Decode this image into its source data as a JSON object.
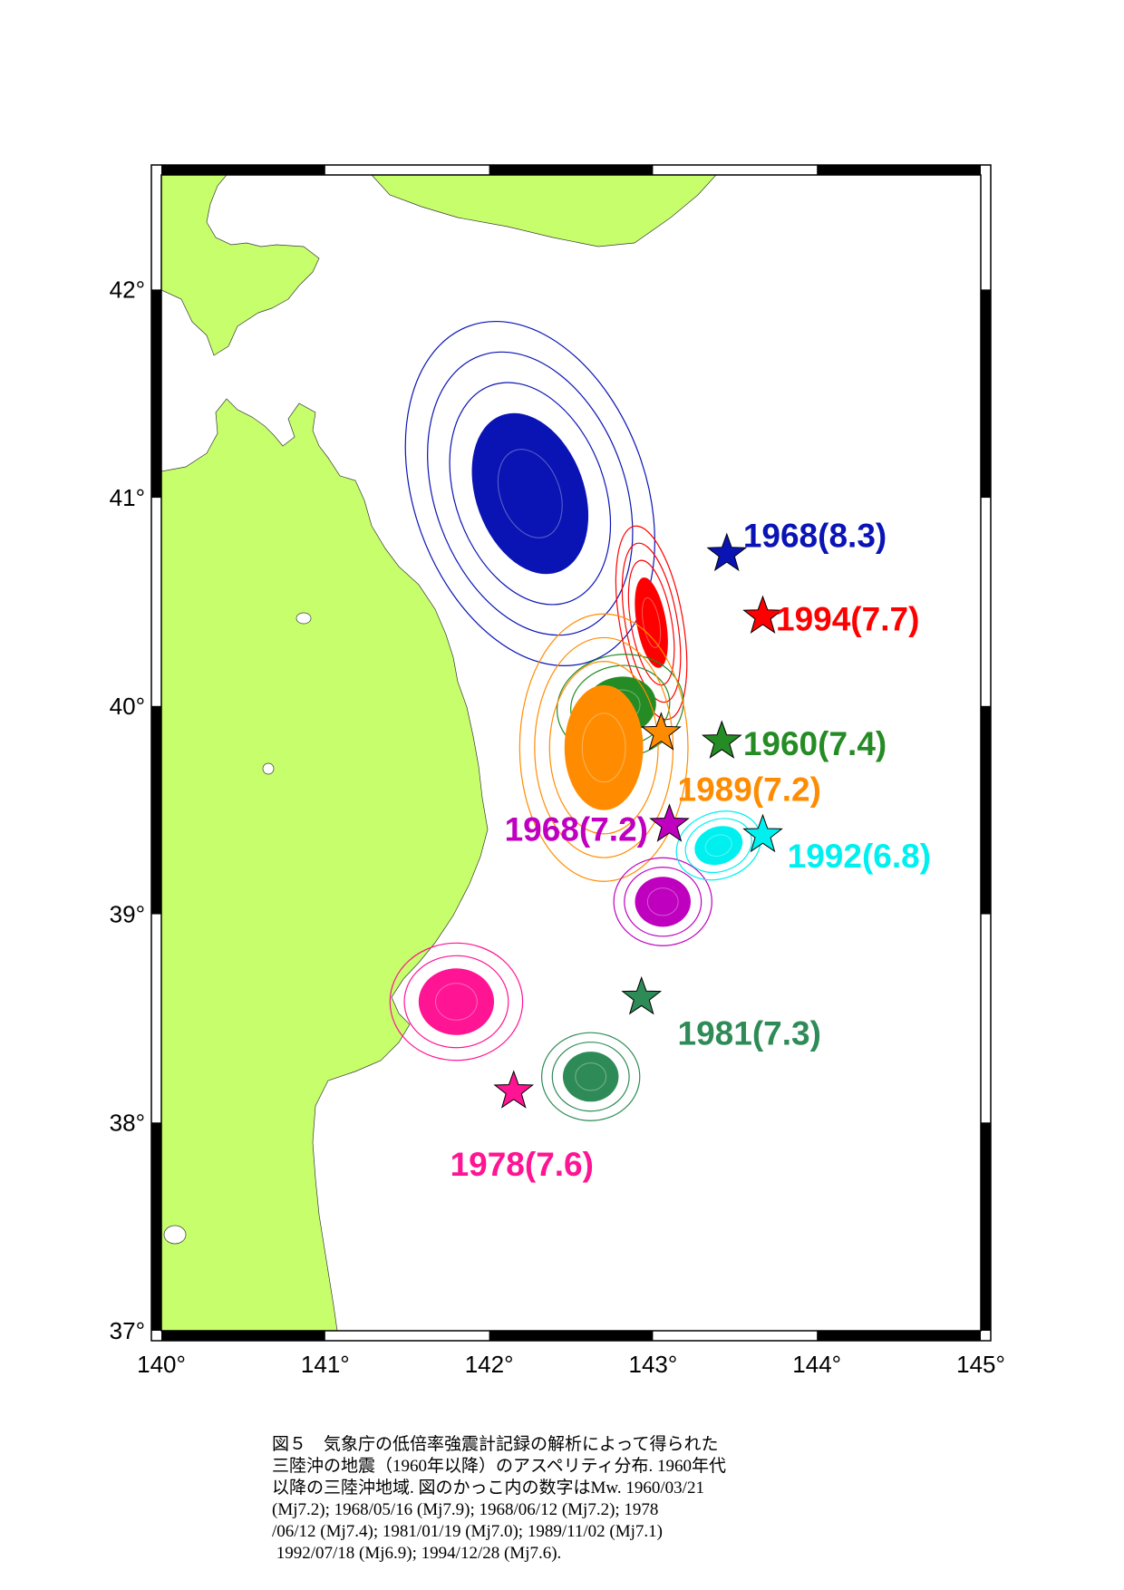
{
  "colors": {
    "land": "#c6fe6c",
    "ocean": "#ffffff",
    "frame": "#000000"
  },
  "map": {
    "lon_range": [
      140,
      145
    ],
    "lat_range": [
      37,
      42.55
    ],
    "x_ticks": [
      {
        "value": 140,
        "label": "140°"
      },
      {
        "value": 141,
        "label": "141°"
      },
      {
        "value": 142,
        "label": "142°"
      },
      {
        "value": 143,
        "label": "143°"
      },
      {
        "value": 144,
        "label": "144°"
      },
      {
        "value": 145,
        "label": "145°"
      }
    ],
    "y_ticks": [
      {
        "value": 37,
        "label": "37°"
      },
      {
        "value": 38,
        "label": "38°"
      },
      {
        "value": 39,
        "label": "39°"
      },
      {
        "value": 40,
        "label": "40°"
      },
      {
        "value": 41,
        "label": "41°"
      },
      {
        "value": 42,
        "label": "42°"
      }
    ]
  },
  "earthquakes": [
    {
      "label": "1968(8.3)",
      "color": "#0a14b4",
      "epicenter": [
        143.45,
        40.73
      ],
      "label_pos": [
        143.55,
        40.82
      ],
      "label_anchor": "start",
      "asperity": {
        "center": [
          142.25,
          41.02
        ],
        "rx": 0.33,
        "ry": 0.4,
        "rot": -20,
        "contours": 3
      }
    },
    {
      "label": "1994(7.7)",
      "color": "#ff0000",
      "epicenter": [
        143.67,
        40.43
      ],
      "label_pos": [
        143.75,
        40.42
      ],
      "label_anchor": "start",
      "asperity": {
        "center": [
          142.99,
          40.4
        ],
        "rx": 0.09,
        "ry": 0.22,
        "rot": -10,
        "contours": 3
      }
    },
    {
      "label": "1960(7.4)",
      "color": "#258c25",
      "epicenter": [
        143.42,
        39.83
      ],
      "label_pos": [
        143.55,
        39.82
      ],
      "label_anchor": "start",
      "asperity": {
        "center": [
          142.8,
          40.0
        ],
        "rx": 0.22,
        "ry": 0.14,
        "rot": -10,
        "contours": 2
      }
    },
    {
      "label": "1989(7.2)",
      "color": "#ff8c00",
      "epicenter": [
        143.05,
        39.87
      ],
      "label_pos": [
        143.15,
        39.6
      ],
      "label_anchor": "start",
      "asperity": {
        "center": [
          142.7,
          39.8
        ],
        "rx": 0.24,
        "ry": 0.3,
        "rot": 0,
        "contours": 3
      }
    },
    {
      "label": "1968(7.2)",
      "color": "#bf00bf",
      "epicenter": [
        143.1,
        39.43
      ],
      "label_pos": [
        142.97,
        39.41
      ],
      "label_anchor": "end",
      "asperity": {
        "center": [
          143.06,
          39.06
        ],
        "rx": 0.17,
        "ry": 0.12,
        "rot": 0,
        "contours": 2
      }
    },
    {
      "label": "1992(6.8)",
      "color": "#00f0f0",
      "epicenter": [
        143.67,
        39.38
      ],
      "label_pos": [
        143.82,
        39.28
      ],
      "label_anchor": "start",
      "asperity": {
        "center": [
          143.4,
          39.33
        ],
        "rx": 0.15,
        "ry": 0.09,
        "rot": -20,
        "contours": 2
      }
    },
    {
      "label": "1981(7.3)",
      "color": "#2e8b57",
      "epicenter": [
        142.93,
        38.6
      ],
      "label_pos": [
        143.15,
        38.43
      ],
      "label_anchor": "start",
      "asperity": {
        "center": [
          142.62,
          38.22
        ],
        "rx": 0.17,
        "ry": 0.12,
        "rot": 0,
        "contours": 2
      }
    },
    {
      "label": "1978(7.6)",
      "color": "#ff1493",
      "epicenter": [
        142.15,
        38.15
      ],
      "label_pos": [
        142.2,
        37.8
      ],
      "label_anchor": "middle",
      "asperity": {
        "center": [
          141.8,
          38.58
        ],
        "rx": 0.23,
        "ry": 0.16,
        "rot": 0,
        "contours": 2
      }
    }
  ],
  "caption": {
    "lines": [
      "図５　気象庁の低倍率強震計記録の解析によって得られた",
      "三陸沖の地震（1960年以降）のアスペリティ分布. 1960年代",
      "以降の三陸沖地域. 図のかっこ内の数字はMw. 1960/03/21",
      "(Mj7.2); 1968/05/16 (Mj7.9); 1968/06/12 (Mj7.2); 1978",
      "/06/12 (Mj7.4); 1981/01/19 (Mj7.0); 1989/11/02 (Mj7.1)",
      " 1992/07/18 (Mj6.9); 1994/12/28 (Mj7.6)."
    ]
  }
}
